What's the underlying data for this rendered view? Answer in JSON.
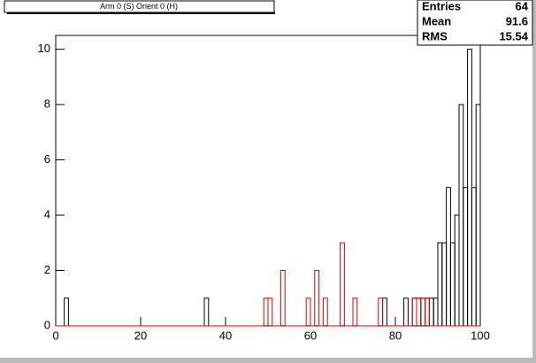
{
  "chart_data": {
    "type": "histogram",
    "title": "Arm 0 (S) Orient 0 (H)",
    "bins": [
      0,
      1,
      2,
      3,
      4,
      5,
      6,
      7,
      8,
      9,
      10,
      11,
      12,
      13,
      14,
      15,
      16,
      17,
      18,
      19,
      20,
      21,
      22,
      23,
      24,
      25,
      26,
      27,
      28,
      29,
      30,
      31,
      32,
      33,
      34,
      35,
      36,
      37,
      38,
      39,
      40,
      41,
      42,
      43,
      44,
      45,
      46,
      47,
      48,
      49,
      50,
      51,
      52,
      53,
      54,
      55,
      56,
      57,
      58,
      59,
      60,
      61,
      62,
      63,
      64,
      65,
      66,
      67,
      68,
      69,
      70,
      71,
      72,
      73,
      74,
      75,
      76,
      77,
      78,
      79,
      80,
      81,
      82,
      83,
      84,
      85,
      86,
      87,
      88,
      89,
      90,
      91,
      92,
      93,
      94,
      95,
      96,
      97,
      98,
      99,
      100
    ],
    "series": [
      {
        "color": "#000000",
        "values": [
          0,
          0,
          1,
          0,
          0,
          0,
          0,
          0,
          0,
          0,
          0,
          0,
          0,
          0,
          0,
          0,
          0,
          0,
          0,
          0,
          0,
          0,
          0,
          0,
          0,
          0,
          0,
          0,
          0,
          0,
          0,
          0,
          0,
          0,
          0,
          1,
          0,
          0,
          0,
          0,
          0,
          0,
          0,
          0,
          0,
          0,
          0,
          0,
          0,
          0,
          0,
          0,
          0,
          0,
          0,
          0,
          0,
          0,
          0,
          0,
          0,
          0,
          0,
          0,
          0,
          0,
          0,
          0,
          0,
          0,
          0,
          0,
          0,
          0,
          0,
          0,
          0,
          1,
          0,
          0,
          0,
          0,
          1,
          0,
          1,
          1,
          1,
          1,
          1,
          1,
          3,
          3,
          5,
          3,
          4,
          8,
          5,
          10,
          5,
          8
        ]
      },
      {
        "color": "#e00000",
        "values": [
          0,
          0,
          0,
          0,
          0,
          0,
          0,
          0,
          0,
          0,
          0,
          0,
          0,
          0,
          0,
          0,
          0,
          0,
          0,
          0,
          0,
          0,
          0,
          0,
          0,
          0,
          0,
          0,
          0,
          0,
          0,
          0,
          0,
          0,
          0,
          0,
          0,
          0,
          0,
          0,
          0,
          0,
          0,
          0,
          0,
          0,
          0,
          0,
          0,
          1,
          1,
          0,
          0,
          2,
          0,
          0,
          0,
          0,
          0,
          1,
          0,
          2,
          0,
          1,
          0,
          0,
          0,
          3,
          0,
          0,
          1,
          0,
          0,
          0,
          0,
          0,
          1,
          0,
          0,
          0,
          0,
          0,
          0,
          0,
          1,
          1,
          1,
          1,
          0,
          0,
          0,
          0,
          0,
          0,
          0,
          0,
          0,
          0,
          0,
          0
        ]
      }
    ],
    "xlim": [
      0,
      100
    ],
    "xticks": [
      0,
      20,
      40,
      60,
      80,
      100
    ],
    "ylim": [
      0,
      10.5
    ],
    "yticks": [
      0,
      2,
      4,
      6,
      8,
      10
    ],
    "stats": [
      {
        "label": "Entries",
        "value": 64
      },
      {
        "label": "Mean",
        "value": 91.6
      },
      {
        "label": "RMS",
        "value": 15.54
      }
    ]
  }
}
